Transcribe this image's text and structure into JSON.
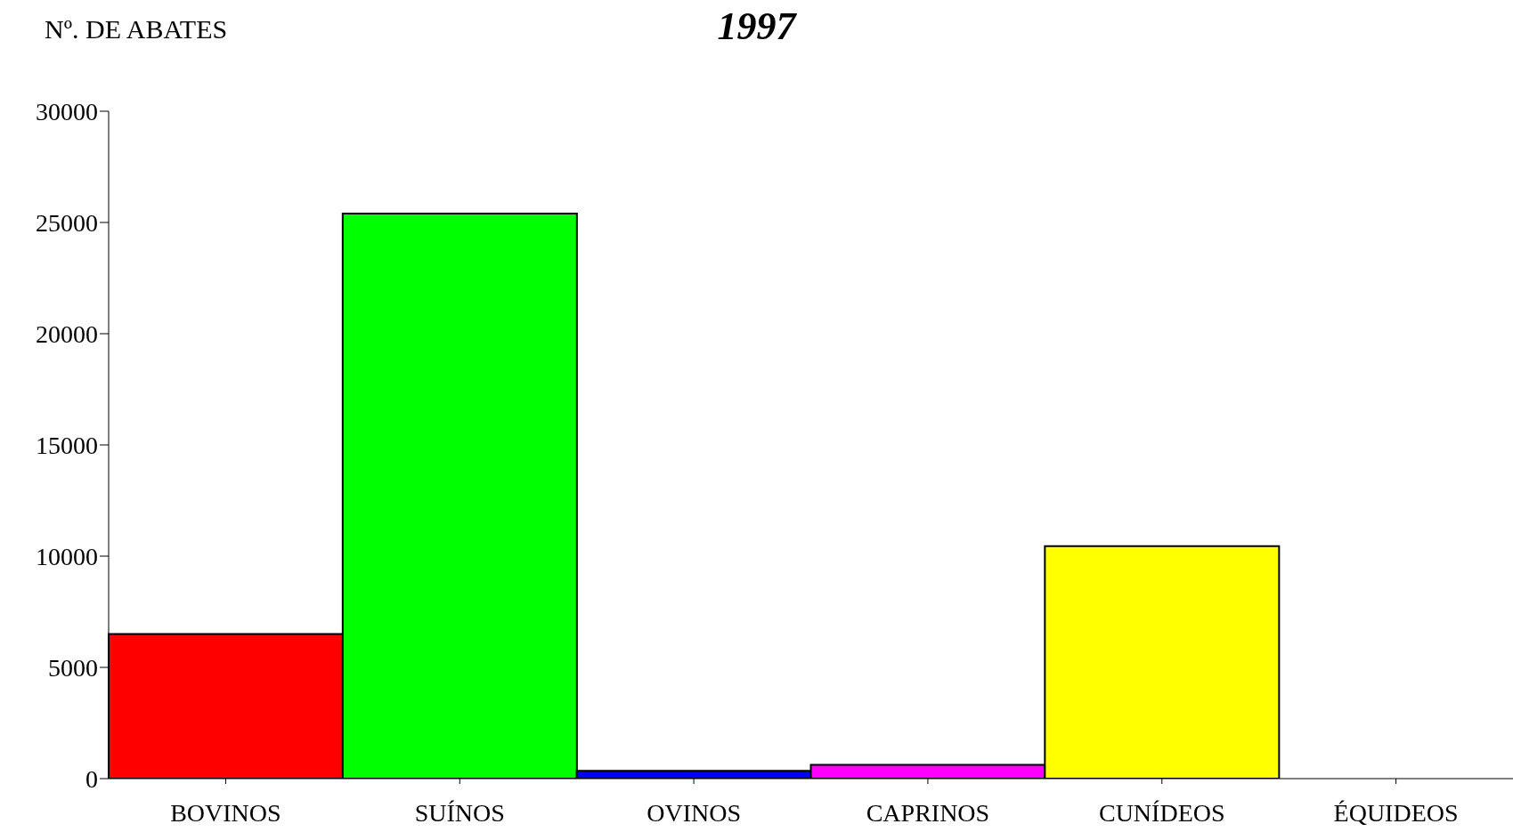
{
  "chart_data": {
    "type": "bar",
    "title": "1997",
    "ylabel": "Nº. DE ABATES",
    "categories": [
      "BOVINOS",
      "SUÍNOS",
      "OVINOS",
      "CAPRINOS",
      "CUNÍDEOS",
      "ÉQUIDEOS"
    ],
    "values": [
      6500,
      25400,
      350,
      620,
      10450,
      0
    ],
    "colors": [
      "#ff0000",
      "#00ff00",
      "#0000ff",
      "#ff00ff",
      "#ffff00",
      "#00ffff"
    ],
    "ylim": [
      0,
      30000
    ],
    "yticks": [
      0,
      5000,
      10000,
      15000,
      20000,
      25000,
      30000
    ],
    "grid": false,
    "legend": false
  }
}
